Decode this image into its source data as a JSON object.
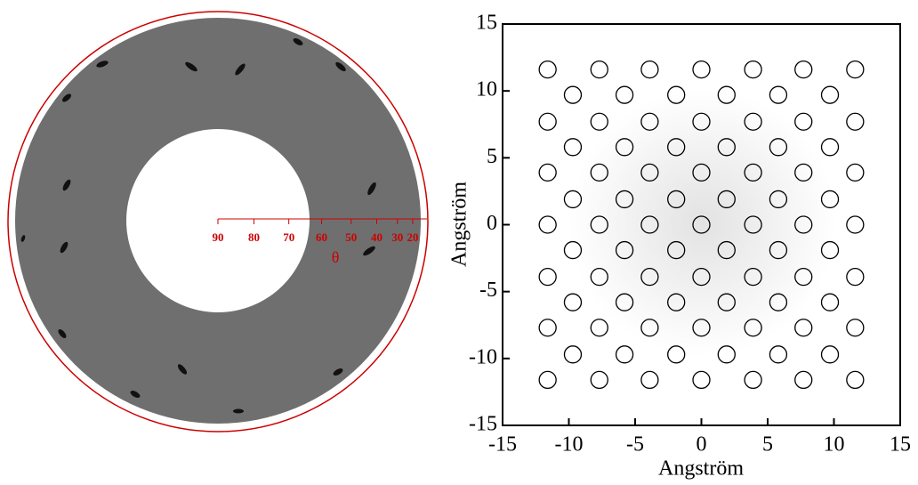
{
  "chart_data": [
    {
      "type": "diffraction",
      "xlabel": "θ",
      "xticks": [
        90,
        80,
        70,
        60,
        50,
        40,
        30,
        20
      ],
      "color": "#cc0000"
    },
    {
      "type": "scatter",
      "xlabel": "Angström",
      "ylabel": "Angström",
      "xlim": [
        -15,
        15
      ],
      "ylim": [
        -15,
        15
      ],
      "xticks": [
        -15,
        -10,
        -5,
        0,
        5,
        10,
        15
      ],
      "yticks": [
        -15,
        -10,
        -5,
        0,
        5,
        10,
        15
      ],
      "color": "#000000",
      "x": [
        -11.6,
        -7.7,
        -3.9,
        0,
        3.9,
        7.7,
        11.6,
        -9.7,
        -5.8,
        -1.9,
        1.9,
        5.8,
        9.7,
        -11.6,
        -7.7,
        -3.9,
        0,
        3.9,
        7.7,
        11.6,
        -9.7,
        -5.8,
        -1.9,
        1.9,
        5.8,
        9.7,
        -11.6,
        -7.7,
        -3.9,
        0,
        3.9,
        7.7,
        11.6,
        -9.7,
        -5.8,
        -1.9,
        1.9,
        5.8,
        9.7,
        -11.6,
        -7.7,
        -3.9,
        0,
        3.9,
        7.7,
        11.6,
        -9.7,
        -5.8,
        -1.9,
        1.9,
        5.8,
        9.7,
        -11.6,
        -7.7,
        -3.9,
        0,
        3.9,
        7.7,
        11.6,
        -9.7,
        -5.8,
        -1.9,
        1.9,
        5.8,
        9.7,
        -11.6,
        -7.7,
        -3.9,
        0,
        3.9,
        7.7,
        11.6,
        -9.7,
        -5.8,
        -1.9,
        1.9,
        5.8,
        9.7,
        -11.6,
        -7.7,
        -3.9,
        0,
        3.9,
        7.7,
        11.6
      ],
      "y": [
        11.6,
        11.6,
        11.6,
        11.6,
        11.6,
        11.6,
        11.6,
        9.7,
        9.7,
        9.7,
        9.7,
        9.7,
        9.7,
        7.7,
        7.7,
        7.7,
        7.7,
        7.7,
        7.7,
        7.7,
        5.8,
        5.8,
        5.8,
        5.8,
        5.8,
        5.8,
        3.9,
        3.9,
        3.9,
        3.9,
        3.9,
        3.9,
        3.9,
        1.9,
        1.9,
        1.9,
        1.9,
        1.9,
        1.9,
        0,
        0,
        0,
        0,
        0,
        0,
        0,
        -1.9,
        -1.9,
        -1.9,
        -1.9,
        -1.9,
        -1.9,
        -3.9,
        -3.9,
        -3.9,
        -3.9,
        -3.9,
        -3.9,
        -3.9,
        -5.8,
        -5.8,
        -5.8,
        -5.8,
        -5.8,
        -5.8,
        -7.7,
        -7.7,
        -7.7,
        -7.7,
        -7.7,
        -7.7,
        -7.7,
        -9.7,
        -9.7,
        -9.7,
        -9.7,
        -9.7,
        -9.7,
        -11.6,
        -11.6,
        -11.6,
        -11.6,
        -11.6,
        -11.6,
        -11.6
      ]
    }
  ]
}
